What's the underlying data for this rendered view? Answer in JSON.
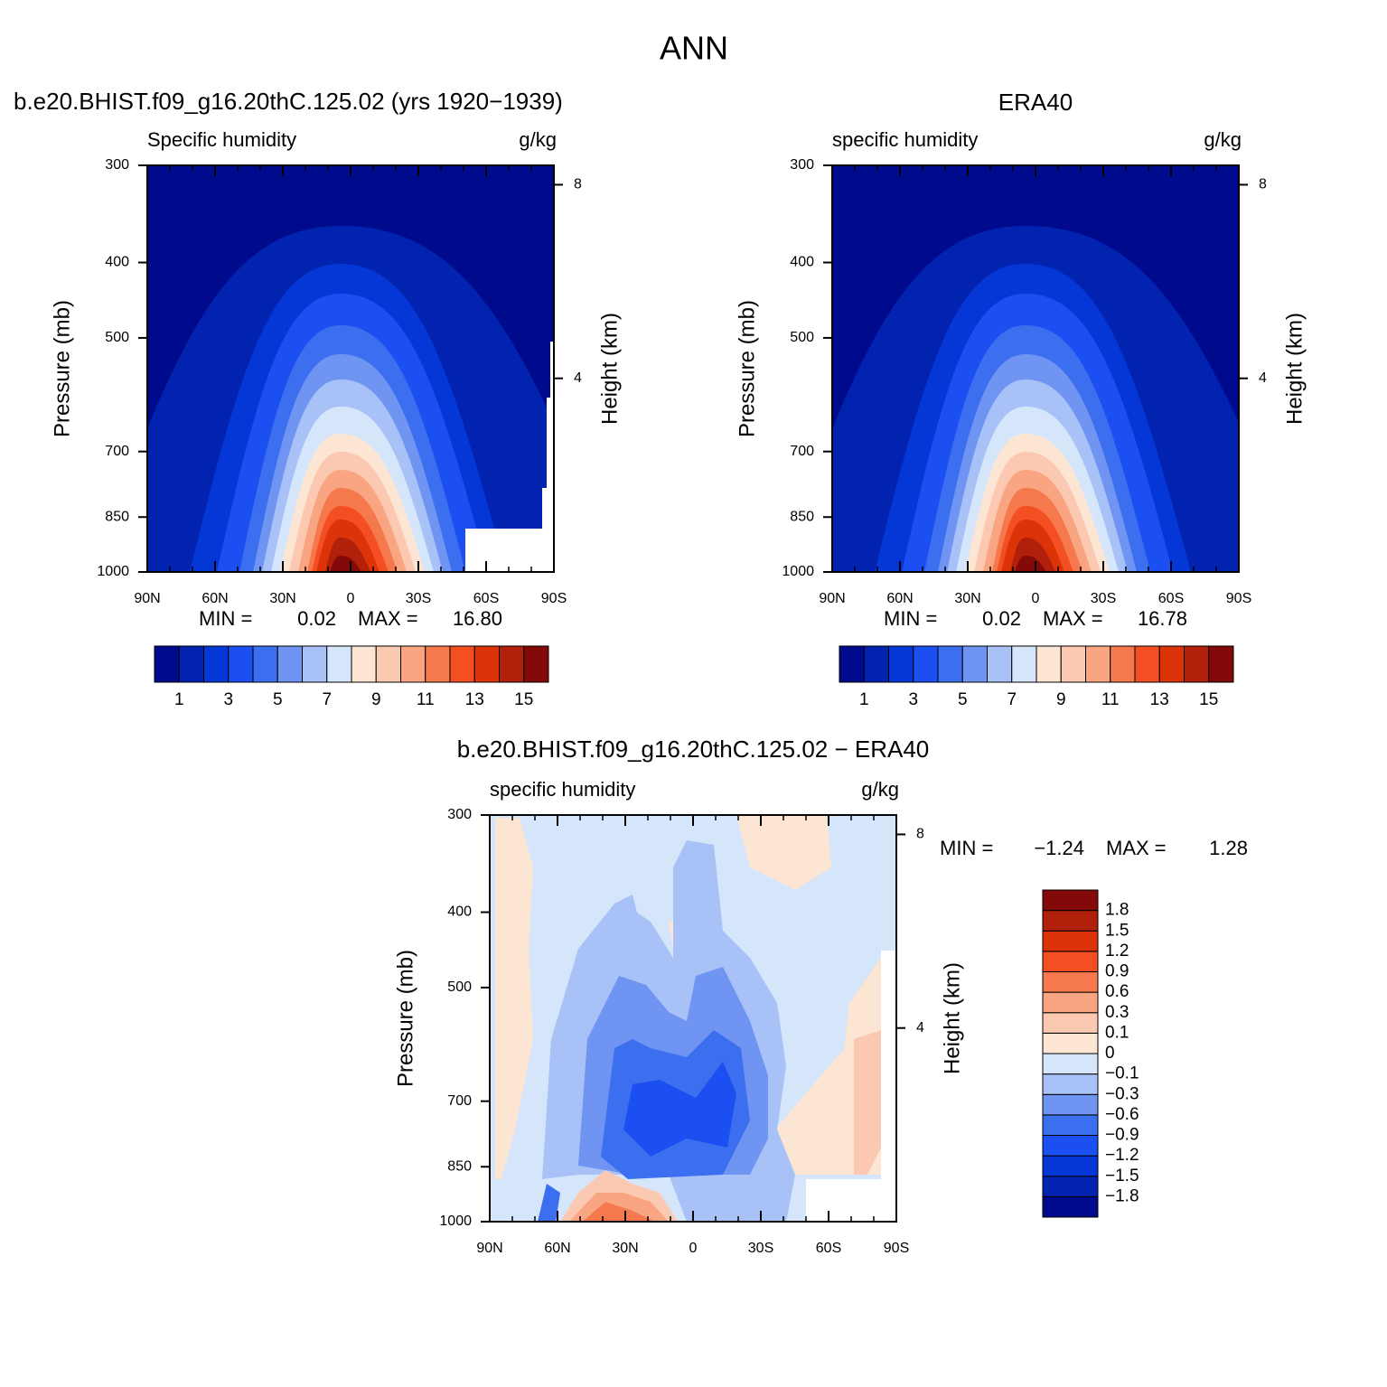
{
  "title": "ANN",
  "chart_data": [
    {
      "type": "contour",
      "title": "b.e20.BHIST.f09_g16.20thC.125.02 (yrs 1920−1939)",
      "left_label": "Specific humidity",
      "right_label": "g/kg",
      "ylabel": "Pressure (mb)",
      "y2label": "Height (km)",
      "xlim": [
        90,
        -90
      ],
      "xticks": [
        {
          "value": 90,
          "label": "90N"
        },
        {
          "value": 60,
          "label": "60N"
        },
        {
          "value": 30,
          "label": "30N"
        },
        0,
        {
          "value": -30,
          "label": "30S"
        },
        {
          "value": -60,
          "label": "60S"
        },
        {
          "value": -90,
          "label": "90S"
        }
      ],
      "ylim": [
        1000,
        300
      ],
      "log_y": true,
      "yticks": [
        300,
        400,
        500,
        700,
        850,
        1000
      ],
      "y2lim": [
        0,
        8.4
      ],
      "y2ticks": [
        8,
        4
      ],
      "min_label": "MIN =",
      "min": 0.02,
      "max_label": "MAX =",
      "max": {
        "value": 16.8,
        "label": "16.80"
      },
      "colors": [
        "#000a8c",
        "#0223b0",
        "#0537d6",
        "#1c4ff2",
        "#3c6ef0",
        "#6f94f2",
        "#a8c1f7",
        "#d5e6fb",
        "#fde5d4",
        "#fbc9b1",
        "#f9a582",
        "#f6784d",
        "#f44f22",
        "#dc3309",
        "#b0200a",
        "#840a0a"
      ],
      "colorbar_lim": [
        0,
        16
      ],
      "colorbar_ticks": [
        1,
        3,
        5,
        7,
        9,
        11,
        13,
        15
      ]
    },
    {
      "type": "contour",
      "title": "ERA40",
      "left_label": "specific humidity",
      "right_label": "g/kg",
      "ylabel": "Pressure (mb)",
      "y2label": "Height (km)",
      "xlim": [
        90,
        -90
      ],
      "xticks": [
        {
          "value": 90,
          "label": "90N"
        },
        {
          "value": 60,
          "label": "60N"
        },
        {
          "value": 30,
          "label": "30N"
        },
        0,
        {
          "value": -30,
          "label": "30S"
        },
        {
          "value": -60,
          "label": "60S"
        },
        {
          "value": -90,
          "label": "90S"
        }
      ],
      "ylim": [
        1000,
        300
      ],
      "log_y": true,
      "yticks": [
        300,
        400,
        500,
        700,
        850,
        1000
      ],
      "y2lim": [
        0,
        8.4
      ],
      "y2ticks": [
        8,
        4
      ],
      "min_label": "MIN =",
      "min": 0.02,
      "max_label": "MAX =",
      "max": 16.78,
      "colors": [
        "#000a8c",
        "#0223b0",
        "#0537d6",
        "#1c4ff2",
        "#3c6ef0",
        "#6f94f2",
        "#a8c1f7",
        "#d5e6fb",
        "#fde5d4",
        "#fbc9b1",
        "#f9a582",
        "#f6784d",
        "#f44f22",
        "#dc3309",
        "#b0200a",
        "#840a0a"
      ],
      "colorbar_lim": [
        0,
        16
      ],
      "colorbar_ticks": [
        1,
        3,
        5,
        7,
        9,
        11,
        13,
        15
      ]
    },
    {
      "type": "contour-diff",
      "title": "b.e20.BHIST.f09_g16.20thC.125.02 − ERA40",
      "left_label": "specific humidity",
      "right_label": "g/kg",
      "ylabel": "Pressure (mb)",
      "y2label": "Height (km)",
      "xlim": [
        90,
        -90
      ],
      "xticks": [
        {
          "value": 90,
          "label": "90N"
        },
        {
          "value": 60,
          "label": "60N"
        },
        {
          "value": 30,
          "label": "30N"
        },
        0,
        {
          "value": -30,
          "label": "30S"
        },
        {
          "value": -60,
          "label": "60S"
        },
        {
          "value": -90,
          "label": "90S"
        }
      ],
      "ylim": [
        1000,
        300
      ],
      "log_y": true,
      "yticks": [
        300,
        400,
        500,
        700,
        850,
        1000
      ],
      "y2lim": [
        0,
        8.4
      ],
      "y2ticks": [
        8,
        4
      ],
      "min_label": "MIN =",
      "min": {
        "value": -1.24,
        "label": "−1.24"
      },
      "max_label": "MAX =",
      "max": 1.28,
      "colors": [
        "#000a8c",
        "#0223b0",
        "#0537d6",
        "#1c4ff2",
        "#3c6ef0",
        "#6f94f2",
        "#a8c1f7",
        "#d5e6fb",
        "#fde5d4",
        "#fbc9b1",
        "#f9a582",
        "#f6784d",
        "#f44f22",
        "#dc3309",
        "#b0200a",
        "#840a0a"
      ],
      "colorbar_ticks": [
        {
          "value": -1.8,
          "label": "−1.8"
        },
        {
          "value": -1.5,
          "label": "−1.5"
        },
        {
          "value": -1.2,
          "label": "−1.2"
        },
        {
          "value": -0.9,
          "label": "−0.9"
        },
        {
          "value": -0.6,
          "label": "−0.6"
        },
        {
          "value": -0.3,
          "label": "−0.3"
        },
        {
          "value": -0.1,
          "label": "−0.1"
        },
        0,
        0.1,
        0.3,
        0.6,
        0.9,
        1.2,
        1.5,
        1.8
      ]
    }
  ]
}
